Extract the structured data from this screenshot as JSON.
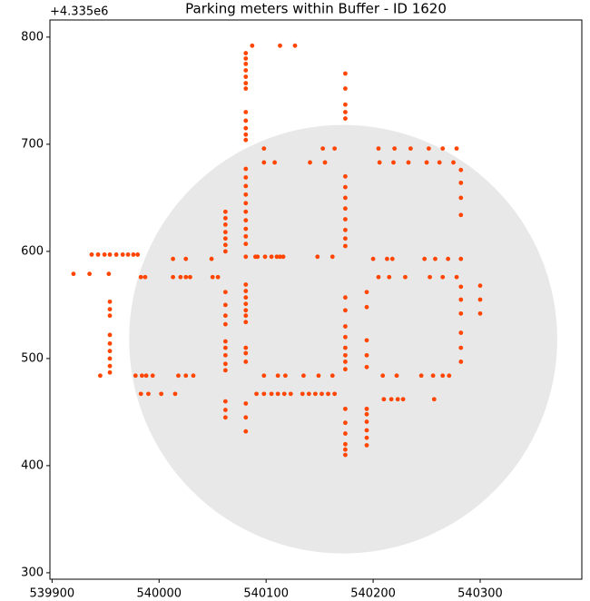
{
  "chart_data": {
    "type": "scatter",
    "title": "Parking meters within Buffer - ID 1620",
    "y_offset_label": "+4.335e6",
    "color": "#ff4500",
    "buffer": {
      "center_x": 540172,
      "center_y": 518,
      "radius": 200,
      "color": "#e8e8e8"
    },
    "xlim": [
      539898,
      540395
    ],
    "ylim": [
      294,
      816
    ],
    "xticks": [
      539900,
      540000,
      540100,
      540200,
      540300
    ],
    "yticks": [
      300,
      400,
      500,
      600,
      700,
      800
    ],
    "x": [
      540081,
      540081,
      540081,
      540081,
      540081,
      540081,
      540081,
      540081,
      540081,
      540081,
      540081,
      540081,
      540081,
      540081,
      540081,
      540081,
      540081,
      540081,
      540081,
      540081,
      540081,
      540081,
      540081,
      540081,
      540081,
      540081,
      540081,
      540081,
      540081,
      540081,
      540081,
      540081,
      540081,
      540081,
      540081,
      540081,
      540062,
      540062,
      540062,
      540062,
      540062,
      540062,
      540062,
      540062,
      540062,
      540062,
      540062,
      540062,
      540062,
      540062,
      540062,
      540062,
      540062,
      540062,
      540062,
      540174,
      540174,
      540174,
      540174,
      540174,
      540174,
      540174,
      540174,
      540174,
      540174,
      540174,
      540174,
      540174,
      540174,
      540174,
      540174,
      540174,
      540174,
      540174,
      540174,
      540174,
      540174,
      540174,
      540174,
      540174,
      540174,
      540174,
      540194,
      540194,
      540194,
      540194,
      540194,
      540194,
      540194,
      540194,
      540194,
      540194,
      540194,
      539954,
      539954,
      539954,
      539954,
      539954,
      539954,
      539954,
      539954,
      539954,
      540282,
      540282,
      540282,
      540282,
      540282,
      540282,
      540282,
      540282,
      540282,
      540282,
      540300,
      540300,
      540300,
      539937,
      539943,
      539949,
      539954,
      539960,
      539966,
      539971,
      539976,
      539980,
      539920,
      539935,
      539953,
      539983,
      539987,
      540013,
      540020,
      540025,
      540029,
      540050,
      540055,
      540013,
      540025,
      540049,
      540090,
      540092,
      540099,
      540105,
      540110,
      540113,
      540116,
      540148,
      540162,
      540200,
      540213,
      540218,
      540248,
      540258,
      540270,
      540282,
      540205,
      540215,
      540230,
      540253,
      540265,
      540278,
      539945,
      539978,
      539984,
      539988,
      539994,
      540018,
      540025,
      540032,
      540098,
      540111,
      540118,
      540135,
      540149,
      540162,
      540209,
      540222,
      540245,
      540256,
      540265,
      540271,
      539983,
      539990,
      540002,
      540015,
      540091,
      540098,
      540105,
      540111,
      540117,
      540123,
      540134,
      540140,
      540146,
      540152,
      540158,
      540164,
      540210,
      540217,
      540223,
      540228,
      540257,
      540098,
      540153,
      540164,
      540205,
      540220,
      540235,
      540252,
      540265,
      540278,
      540098,
      540108,
      540141,
      540155,
      540206,
      540219,
      540233,
      540250,
      540262,
      540275,
      540087,
      540113,
      540127
    ],
    "y": [
      785,
      780,
      775,
      769,
      763,
      757,
      752,
      730,
      722,
      715,
      709,
      704,
      677,
      669,
      661,
      653,
      645,
      637,
      629,
      621,
      614,
      607,
      569,
      563,
      557,
      551,
      545,
      540,
      534,
      510,
      505,
      497,
      458,
      445,
      432,
      595,
      637,
      631,
      625,
      618,
      612,
      606,
      600,
      562,
      550,
      540,
      532,
      516,
      510,
      503,
      495,
      489,
      460,
      452,
      445,
      766,
      752,
      737,
      730,
      724,
      670,
      660,
      650,
      640,
      630,
      620,
      612,
      605,
      557,
      545,
      530,
      520,
      510,
      503,
      497,
      490,
      453,
      440,
      430,
      420,
      415,
      410,
      562,
      548,
      517,
      503,
      492,
      453,
      448,
      441,
      433,
      426,
      419,
      553,
      546,
      540,
      522,
      514,
      507,
      500,
      493,
      487,
      676,
      664,
      650,
      634,
      567,
      555,
      542,
      524,
      510,
      497,
      568,
      555,
      542,
      597,
      597,
      597,
      597,
      597,
      597,
      597,
      597,
      597,
      579,
      579,
      579,
      576,
      576,
      576,
      576,
      576,
      576,
      576,
      576,
      593,
      593,
      593,
      595,
      595,
      595,
      595,
      595,
      595,
      595,
      595,
      595,
      593,
      593,
      593,
      593,
      593,
      593,
      593,
      576,
      576,
      576,
      576,
      576,
      576,
      484,
      484,
      484,
      484,
      484,
      484,
      484,
      484,
      484,
      484,
      484,
      484,
      484,
      484,
      484,
      484,
      484,
      484,
      484,
      484,
      467,
      467,
      467,
      467,
      467,
      467,
      467,
      467,
      467,
      467,
      467,
      467,
      467,
      467,
      467,
      467,
      462,
      462,
      462,
      462,
      462,
      696,
      696,
      696,
      696,
      696,
      696,
      696,
      696,
      696,
      683,
      683,
      683,
      683,
      683,
      683,
      683,
      683,
      683,
      683,
      792,
      792,
      792
    ]
  }
}
